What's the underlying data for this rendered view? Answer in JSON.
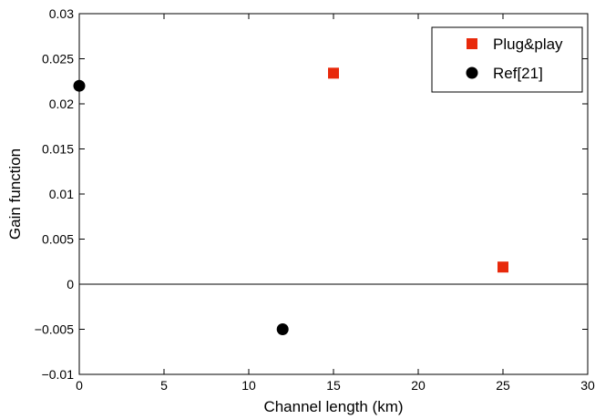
{
  "chart_data": {
    "type": "scatter",
    "title": "",
    "xlabel": "Channel length (km)",
    "ylabel": "Gain function",
    "xlim": [
      0,
      30
    ],
    "ylim": [
      -0.01,
      0.03
    ],
    "xticks": [
      0,
      5,
      10,
      15,
      20,
      25,
      30
    ],
    "yticks": [
      -0.01,
      -0.005,
      0,
      0.005,
      0.01,
      0.015,
      0.02,
      0.025,
      0.03
    ],
    "xtick_labels": [
      "0",
      "5",
      "10",
      "15",
      "20",
      "25",
      "30"
    ],
    "ytick_labels": [
      "−0.01",
      "−0.005",
      "0",
      "0.005",
      "0.01",
      "0.015",
      "0.02",
      "0.025",
      "0.03"
    ],
    "grid": false,
    "zero_line": true,
    "legend_position": "top-right",
    "series": [
      {
        "name": "Plug&play",
        "marker": "square",
        "color": "#e8290b",
        "points": [
          {
            "x": 15,
            "y": 0.0234
          },
          {
            "x": 25,
            "y": 0.0019
          }
        ]
      },
      {
        "name": "Ref[21]",
        "marker": "circle",
        "color": "#000000",
        "points": [
          {
            "x": 0,
            "y": 0.022
          },
          {
            "x": 12,
            "y": -0.005
          }
        ]
      }
    ]
  }
}
